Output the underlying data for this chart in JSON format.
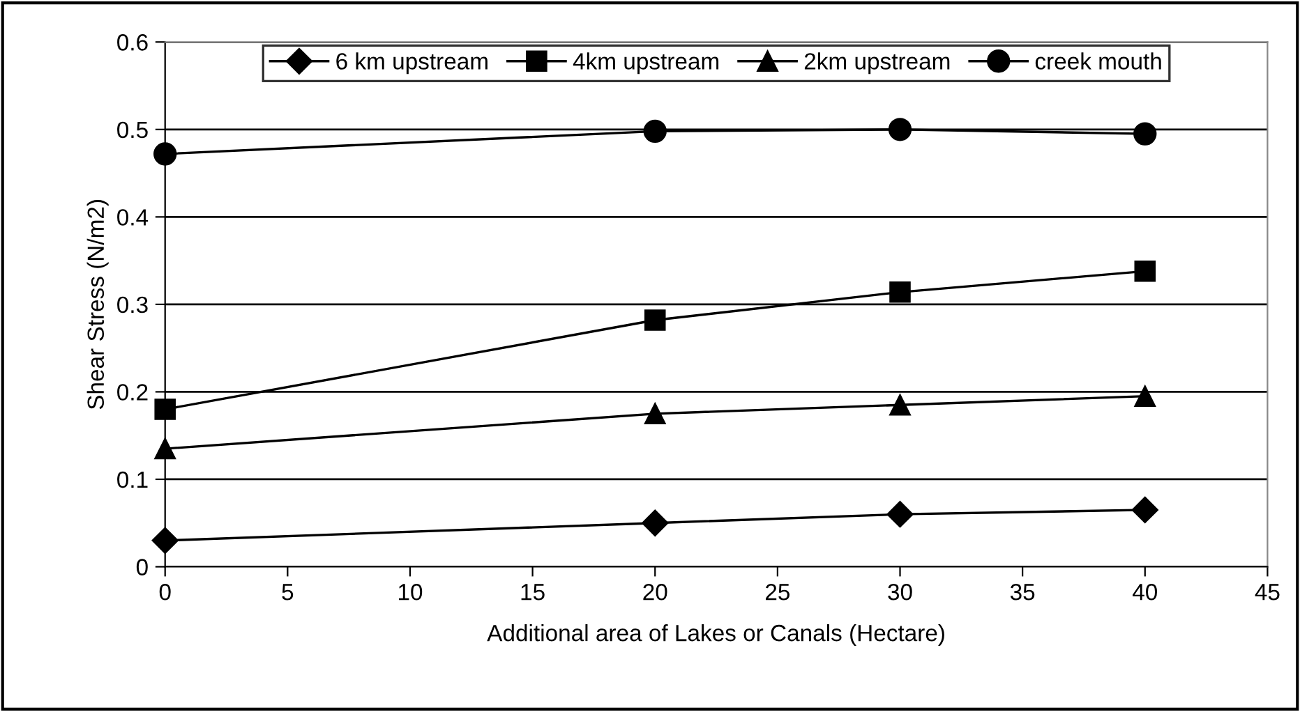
{
  "chart_data": {
    "type": "line",
    "xlabel": "Additional area of Lakes or Canals (Hectare)",
    "ylabel": "Shear Stress (N/m2)",
    "x": [
      0,
      20,
      30,
      40
    ],
    "series": [
      {
        "name": "6 km upstream",
        "color": "#000000",
        "marker": "diamond",
        "values": [
          0.03,
          0.05,
          0.06,
          0.065
        ]
      },
      {
        "name": "4km upstream",
        "color": "#000000",
        "marker": "square",
        "values": [
          0.18,
          0.282,
          0.314,
          0.338
        ]
      },
      {
        "name": "2km upstream",
        "color": "#000000",
        "marker": "triangle",
        "values": [
          0.135,
          0.175,
          0.185,
          0.195
        ]
      },
      {
        "name": "creek mouth",
        "color": "#000000",
        "marker": "circle",
        "values": [
          0.472,
          0.498,
          0.5,
          0.495
        ]
      }
    ],
    "xlim": [
      0,
      45
    ],
    "xticks": [
      0,
      5,
      10,
      15,
      20,
      25,
      30,
      35,
      40,
      45
    ],
    "ylim": [
      0,
      0.6
    ],
    "yticks": [
      0,
      0.1,
      0.2,
      0.3,
      0.4,
      0.5,
      0.6
    ],
    "grid": "y",
    "legend": "top",
    "line_style": "solid"
  }
}
